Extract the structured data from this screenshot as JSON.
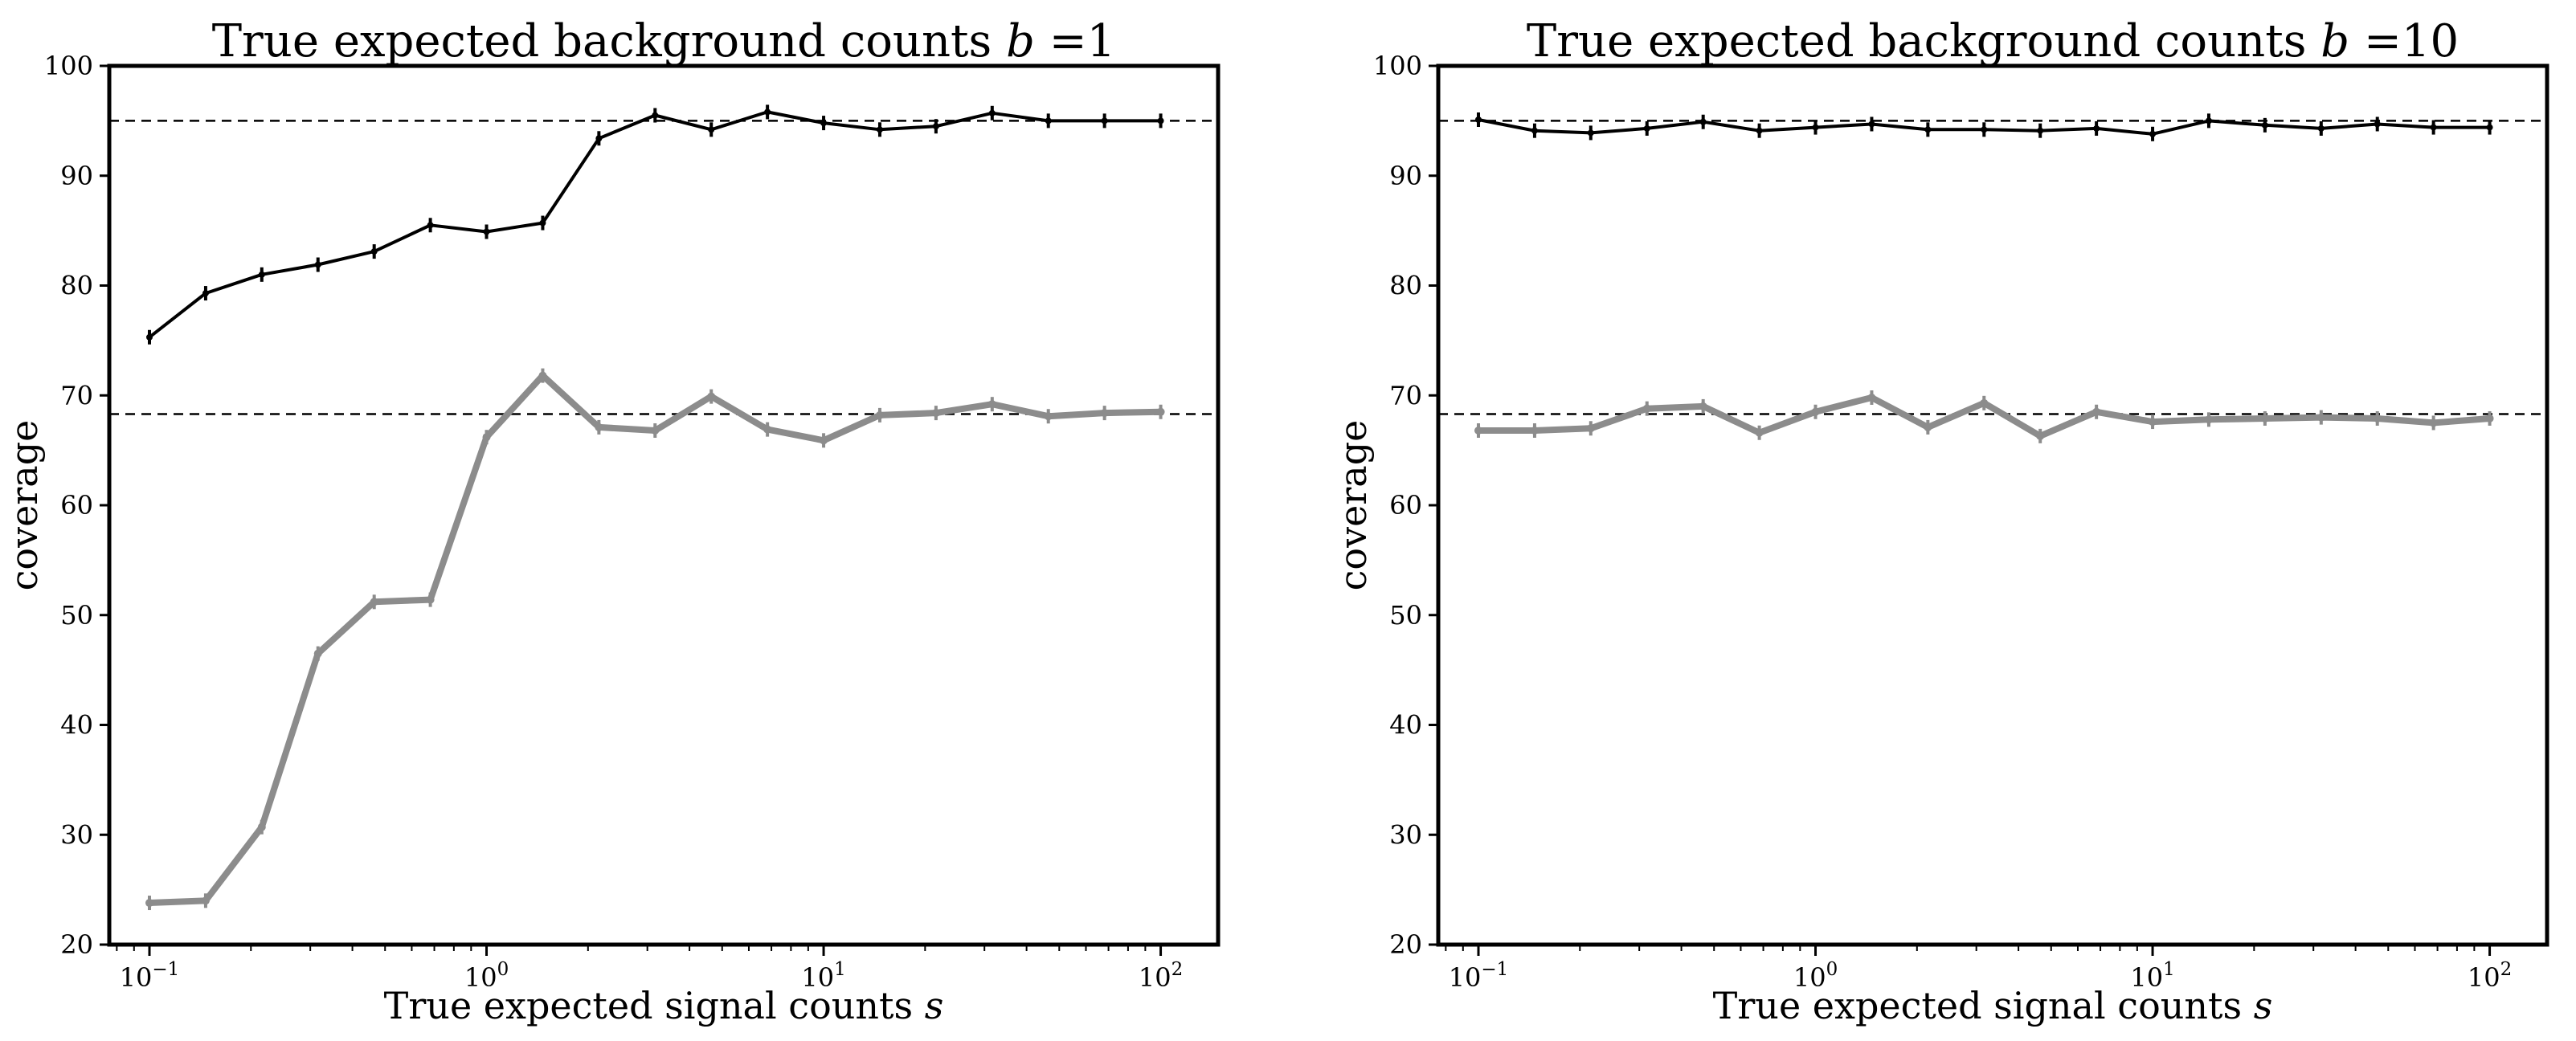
{
  "figure": {
    "background": "#ffffff"
  },
  "chart_data": [
    {
      "type": "line",
      "title_prefix": "True expected background counts ",
      "title_var": "b",
      "title_eq": " =1",
      "xlabel_prefix": "True expected signal counts ",
      "xlabel_var": "s",
      "ylabel": "coverage",
      "xscale": "log",
      "xlim": [
        0.076,
        148
      ],
      "ylim": [
        20,
        100
      ],
      "yticks": [
        20,
        30,
        40,
        50,
        60,
        70,
        80,
        90,
        100
      ],
      "xticks": [
        {
          "value": 0.1,
          "base": "10",
          "exp": "−1"
        },
        {
          "value": 1,
          "base": "10",
          "exp": "0"
        },
        {
          "value": 10,
          "base": "10",
          "exp": "1"
        },
        {
          "value": 100,
          "base": "10",
          "exp": "2"
        }
      ],
      "hlines": [
        {
          "y": 95.0,
          "style": "dashed",
          "color": "#000000"
        },
        {
          "y": 68.3,
          "style": "dashed",
          "color": "#000000"
        }
      ],
      "x": [
        0.1,
        0.1468,
        0.2154,
        0.3162,
        0.4642,
        0.6813,
        1.0,
        1.4678,
        2.1544,
        3.1623,
        4.6416,
        6.8129,
        10.0,
        14.678,
        21.544,
        31.623,
        46.416,
        68.129,
        100.0
      ],
      "series": [
        {
          "color": "#000000",
          "width": 4,
          "values": [
            75.3,
            79.3,
            81.0,
            81.9,
            83.1,
            85.5,
            84.9,
            85.7,
            93.4,
            95.5,
            94.2,
            95.8,
            94.8,
            94.2,
            94.5,
            95.7,
            95.0,
            95.0,
            95.0
          ]
        },
        {
          "color": "#8c8c8c",
          "width": 8,
          "values": [
            23.8,
            24.0,
            30.7,
            46.5,
            51.2,
            51.4,
            66.2,
            71.8,
            67.1,
            66.8,
            69.9,
            66.9,
            65.9,
            68.2,
            68.4,
            69.2,
            68.1,
            68.4,
            68.5
          ]
        }
      ]
    },
    {
      "type": "line",
      "title_prefix": "True expected background counts ",
      "title_var": "b",
      "title_eq": " =10",
      "xlabel_prefix": "True expected signal counts ",
      "xlabel_var": "s",
      "ylabel": "coverage",
      "xscale": "log",
      "xlim": [
        0.076,
        148
      ],
      "ylim": [
        20,
        100
      ],
      "yticks": [
        20,
        30,
        40,
        50,
        60,
        70,
        80,
        90,
        100
      ],
      "xticks": [
        {
          "value": 0.1,
          "base": "10",
          "exp": "−1"
        },
        {
          "value": 1,
          "base": "10",
          "exp": "0"
        },
        {
          "value": 10,
          "base": "10",
          "exp": "1"
        },
        {
          "value": 100,
          "base": "10",
          "exp": "2"
        }
      ],
      "hlines": [
        {
          "y": 95.0,
          "style": "dashed",
          "color": "#000000"
        },
        {
          "y": 68.3,
          "style": "dashed",
          "color": "#000000"
        }
      ],
      "x": [
        0.1,
        0.1468,
        0.2154,
        0.3162,
        0.4642,
        0.6813,
        1.0,
        1.4678,
        2.1544,
        3.1623,
        4.6416,
        6.8129,
        10.0,
        14.678,
        21.544,
        31.623,
        46.416,
        68.129,
        100.0
      ],
      "series": [
        {
          "color": "#000000",
          "width": 4,
          "values": [
            95.1,
            94.1,
            93.9,
            94.3,
            94.9,
            94.1,
            94.4,
            94.7,
            94.2,
            94.2,
            94.1,
            94.3,
            93.8,
            95.0,
            94.6,
            94.3,
            94.7,
            94.4,
            94.4
          ]
        },
        {
          "color": "#8c8c8c",
          "width": 8,
          "values": [
            66.8,
            66.8,
            67.0,
            68.8,
            69.0,
            66.6,
            68.5,
            69.8,
            67.1,
            69.3,
            66.3,
            68.5,
            67.6,
            67.8,
            67.9,
            68.0,
            67.9,
            67.5,
            67.9
          ]
        }
      ]
    }
  ]
}
